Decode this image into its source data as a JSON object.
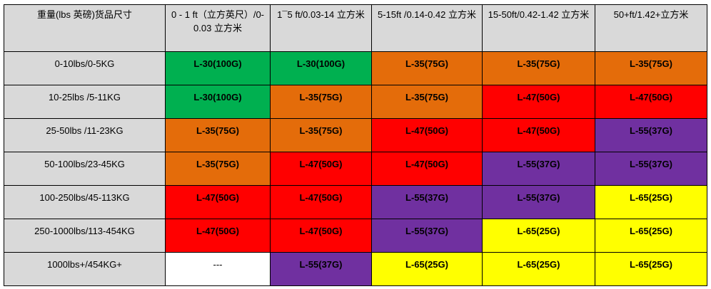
{
  "colors": {
    "L-30(100G)": "#00b050",
    "L-35(75G)": "#e46c0a",
    "L-47(50G)": "#ff0000",
    "L-55(37G)": "#7030a0",
    "L-65(25G)": "#ffff00",
    "---": "#ffffff",
    "header": "#d9d9d9"
  },
  "headers": [
    "重量(lbs 英磅)货品尺寸",
    "0 - 1 ft（立方英尺）/0-0.03 立方米",
    "1¯5 ft/0.03-14 立方米",
    "5-15ft /0.14-0.42 立方米",
    "15-50ft/0.42-1.42 立方米",
    "50+ft/1.42+立方米"
  ],
  "rows": [
    {
      "label": "0-10lbs/0-5KG",
      "cells": [
        "L-30(100G)",
        "L-30(100G)",
        "L-35(75G)",
        "L-35(75G)",
        "L-35(75G)"
      ]
    },
    {
      "label": "10-25lbs /5-11KG",
      "cells": [
        "L-30(100G)",
        "L-35(75G)",
        "L-35(75G)",
        "L-47(50G)",
        "L-47(50G)"
      ]
    },
    {
      "label": "25-50lbs /11-23KG",
      "cells": [
        "L-35(75G)",
        "L-35(75G)",
        "L-47(50G)",
        "L-47(50G)",
        "L-55(37G)"
      ]
    },
    {
      "label": "50-100lbs/23-45KG",
      "cells": [
        "L-35(75G)",
        "L-47(50G)",
        "L-47(50G)",
        "L-55(37G)",
        "L-55(37G)"
      ]
    },
    {
      "label": "100-250lbs/45-113KG",
      "cells": [
        "L-47(50G)",
        "L-47(50G)",
        "L-55(37G)",
        "L-55(37G)",
        "L-65(25G)"
      ]
    },
    {
      "label": "250-1000lbs/113-454KG",
      "cells": [
        "L-47(50G)",
        "L-47(50G)",
        "L-55(37G)",
        "L-65(25G)",
        "L-65(25G)"
      ]
    },
    {
      "label": "1000lbs+/454KG+",
      "cells": [
        "---",
        "L-55(37G)",
        "L-65(25G)",
        "L-65(25G)",
        "L-65(25G)"
      ]
    }
  ]
}
